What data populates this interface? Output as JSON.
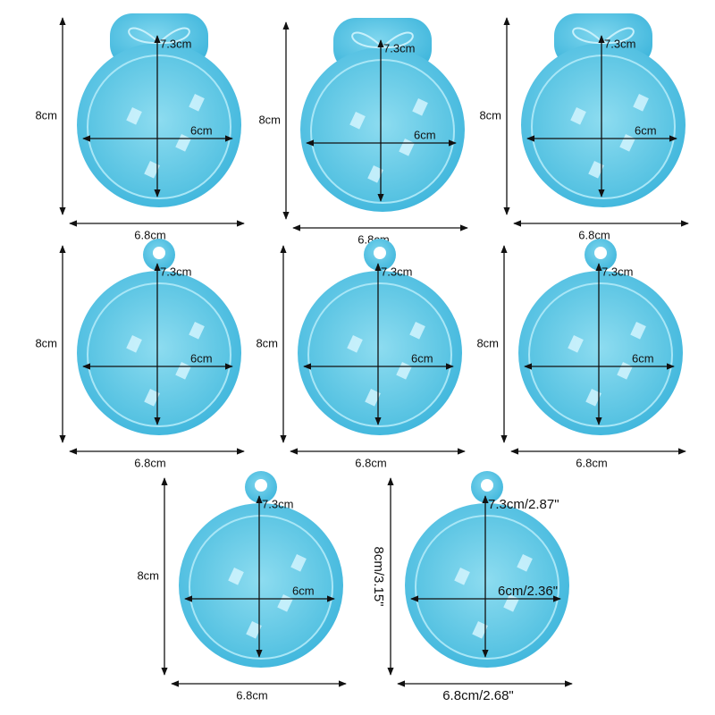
{
  "molds": [
    {
      "height": "8cm",
      "inner_height": "7.3cm",
      "inner_width": "6cm",
      "width": "6.8cm"
    },
    {
      "height": "8cm",
      "inner_height": "7.3cm",
      "inner_width": "6cm",
      "width": "6.8cm"
    },
    {
      "height": "8cm",
      "inner_height": "7.3cm",
      "inner_width": "6cm",
      "width": "6.8cm"
    },
    {
      "height": "8cm",
      "inner_height": "7.3cm",
      "inner_width": "6cm",
      "width": "6.8cm"
    },
    {
      "height": "8cm",
      "inner_height": "7.3cm",
      "inner_width": "6cm",
      "width": "6.8cm"
    },
    {
      "height": "8cm",
      "inner_height": "7.3cm",
      "inner_width": "6cm",
      "width": "6.8cm"
    },
    {
      "height": "8cm",
      "inner_height": "7.3cm",
      "inner_width": "6cm",
      "width": "6.8cm"
    },
    {
      "height": "8cm/3.15\"",
      "inner_height": "7.3cm/2.87\"",
      "inner_width": "6cm/2.36\"",
      "width": "6.8cm/2.68\""
    }
  ]
}
